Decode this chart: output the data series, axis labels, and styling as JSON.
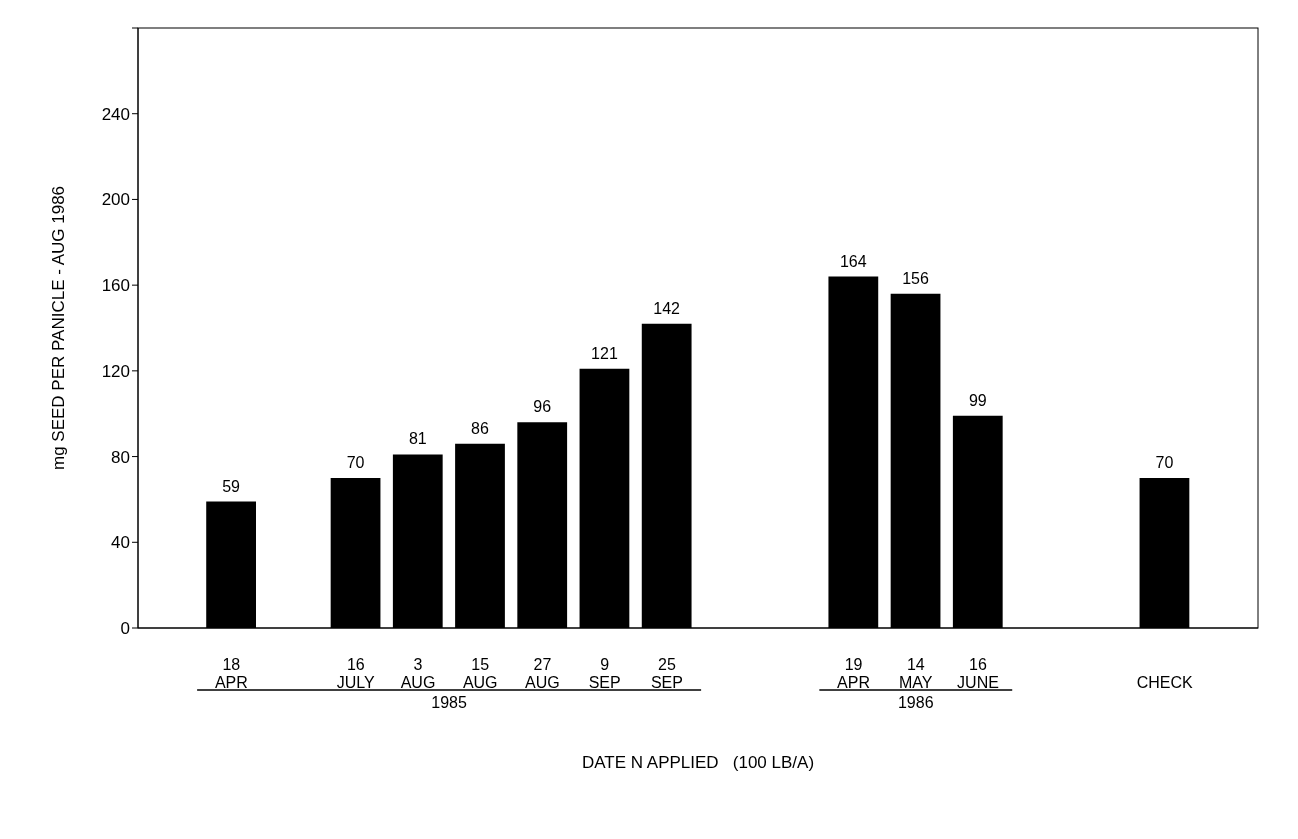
{
  "chart_data": {
    "type": "bar",
    "ylabel": "mg SEED PER PANICLE - AUG 1986",
    "xlabel": "DATE N APPLIED   (100 LB/A)",
    "categories": [
      null,
      "18 APR",
      null,
      "16 JULY",
      "3 AUG",
      "15 AUG",
      "27 AUG",
      "9 SEP",
      "25 SEP",
      null,
      null,
      "19 APR",
      "14 MAY",
      "16 JUNE",
      null,
      null,
      "CHECK",
      null
    ],
    "values": [
      null,
      59,
      null,
      70,
      81,
      86,
      96,
      121,
      142,
      null,
      null,
      164,
      156,
      99,
      null,
      null,
      70,
      null
    ],
    "color": "#000000",
    "ylim": [
      0,
      280
    ],
    "yticks": [
      0,
      40,
      80,
      120,
      160,
      200,
      240,
      {
        "value": 280,
        "label": null
      }
    ],
    "data_labels": true,
    "grid": false,
    "annotations": [
      "1985",
      "1986"
    ]
  }
}
